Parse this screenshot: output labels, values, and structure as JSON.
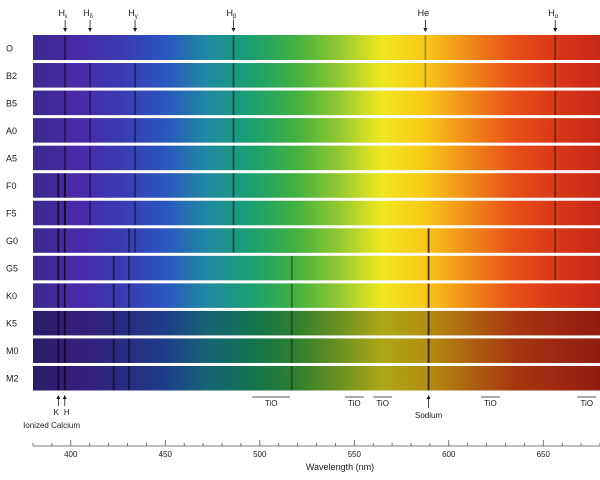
{
  "title": "",
  "spectral_types": [
    "O",
    "B2",
    "B5",
    "A0",
    "A5",
    "F0",
    "F5",
    "G0",
    "G5",
    "K0",
    "K5",
    "M0",
    "M2"
  ],
  "top_markers": [
    {
      "base": "H",
      "sub": "ε",
      "wavelength": 397.0
    },
    {
      "base": "H",
      "sub": "δ",
      "wavelength": 410.2
    },
    {
      "base": "H",
      "sub": "γ",
      "wavelength": 434.0
    },
    {
      "base": "H",
      "sub": "β",
      "wavelength": 486.1
    },
    {
      "base": "He",
      "sub": "",
      "wavelength": 587.6
    },
    {
      "base": "H",
      "sub": "α",
      "wavelength": 656.3
    }
  ],
  "bottom_markers": {
    "calcium": {
      "labels": [
        "K",
        "H"
      ],
      "wavelengths": [
        393.4,
        396.8
      ],
      "caption": "Ionized Calcium"
    },
    "sodium": {
      "label": "Sodium",
      "wavelength": 589.3
    },
    "tio_bands": [
      {
        "label": "TiO",
        "start": 496,
        "end": 516
      },
      {
        "label": "TiO",
        "start": 545,
        "end": 555
      },
      {
        "label": "TiO",
        "start": 560,
        "end": 570
      },
      {
        "label": "TiO",
        "start": 617,
        "end": 627
      },
      {
        "label": "TiO",
        "start": 668,
        "end": 678
      }
    ]
  },
  "axis": {
    "label": "Wavelength (nm)",
    "range": [
      380,
      680
    ],
    "major_ticks": [
      400,
      450,
      500,
      550,
      600,
      650
    ],
    "minor_step": 10
  },
  "colors": {
    "background": "#ffffff",
    "separator": "#ffffff",
    "text": "#1a1a1a",
    "spectrum_stops": [
      "#3a2a8c",
      "#4a2aa8",
      "#3a3ab0",
      "#2a55c0",
      "#1f8aa0",
      "#1aa070",
      "#40b040",
      "#90c830",
      "#f0e820",
      "#f8c818",
      "#f08a18",
      "#e85018",
      "#d83818",
      "#c82818"
    ]
  },
  "absorption_lines": [
    {
      "wavelength": 397.0,
      "types": [
        "O",
        "B2",
        "B5",
        "A0",
        "A5",
        "F0",
        "F5"
      ],
      "strength": 0.55
    },
    {
      "wavelength": 410.2,
      "types": [
        "B2",
        "B5",
        "A0",
        "A5",
        "F0",
        "F5"
      ],
      "strength": 0.45
    },
    {
      "wavelength": 434.0,
      "types": [
        "B2",
        "B5",
        "A0",
        "A5",
        "F0",
        "F5",
        "G0"
      ],
      "strength": 0.45
    },
    {
      "wavelength": 486.1,
      "types": [
        "O",
        "B2",
        "B5",
        "A0",
        "A5",
        "F0",
        "F5",
        "G0"
      ],
      "strength": 0.5
    },
    {
      "wavelength": 656.3,
      "types": [
        "O",
        "B2",
        "B5",
        "A0",
        "A5",
        "F0",
        "F5",
        "G0",
        "G5"
      ],
      "strength": 0.45
    },
    {
      "wavelength": 587.6,
      "types": [
        "O",
        "B2"
      ],
      "strength": 0.3
    },
    {
      "wavelength": 393.4,
      "types": [
        "F0",
        "F5",
        "G0",
        "G5",
        "K0",
        "K5",
        "M0",
        "M2"
      ],
      "strength": 0.75
    },
    {
      "wavelength": 396.8,
      "types": [
        "F0",
        "F5",
        "G0",
        "G5",
        "K0",
        "K5",
        "M0",
        "M2"
      ],
      "strength": 0.75
    },
    {
      "wavelength": 589.3,
      "types": [
        "G0",
        "G5",
        "K0",
        "K5",
        "M0",
        "M2"
      ],
      "strength": 0.75
    },
    {
      "wavelength": 422.7,
      "types": [
        "G5",
        "K0",
        "K5",
        "M0",
        "M2"
      ],
      "strength": 0.6
    },
    {
      "wavelength": 430.8,
      "types": [
        "G0",
        "G5",
        "K0",
        "K5",
        "M0",
        "M2"
      ],
      "strength": 0.55
    },
    {
      "wavelength": 516.9,
      "types": [
        "G5",
        "K0",
        "K5",
        "M0",
        "M2"
      ],
      "strength": 0.4
    }
  ],
  "darkened_types": [
    "K5",
    "M0",
    "M2"
  ]
}
